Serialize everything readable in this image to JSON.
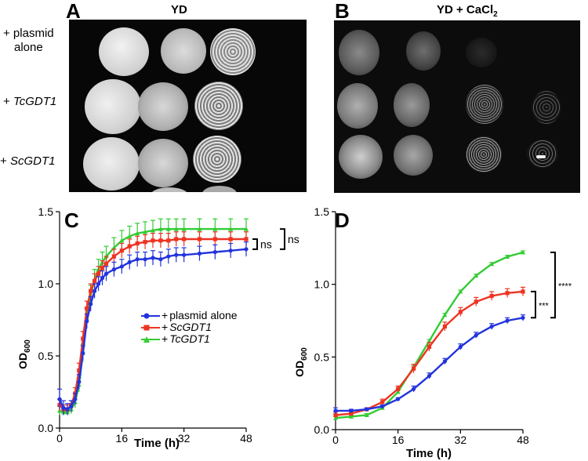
{
  "panel_a": {
    "letter": "A",
    "title": "YD",
    "rows": [
      {
        "label_line1": "+ plasmid",
        "label_line2": "alone",
        "label_italic": ""
      },
      {
        "label_line1": "+ ",
        "label_line2": "",
        "label_italic": "TcGDT1"
      },
      {
        "label_line1": "+ ",
        "label_line2": "",
        "label_italic": "ScGDT1"
      }
    ]
  },
  "panel_b": {
    "letter": "B",
    "title_main": "YD + CaCl",
    "title_sub": "2"
  },
  "panel_c": {
    "letter": "C"
  },
  "panel_d": {
    "letter": "D"
  },
  "colors": {
    "plasmid": "#2233dd",
    "scgdt1": "#ee3322",
    "tcgdt1": "#33cc33"
  },
  "chart_data": [
    {
      "type": "line",
      "panel": "C",
      "xlabel": "Time (h)",
      "ylabel_main": "OD",
      "ylabel_sub": "600",
      "xlim": [
        0,
        48
      ],
      "ylim": [
        0.0,
        1.5
      ],
      "xticks": [
        0,
        16,
        32,
        48
      ],
      "yticks": [
        0.0,
        0.5,
        1.0,
        1.5
      ],
      "xtick_labels": [
        "0",
        "16",
        "32",
        "48"
      ],
      "ytick_labels": [
        "0.0",
        "0.5",
        "1.0",
        "1.5"
      ],
      "x": [
        0,
        1,
        2,
        3,
        4,
        5,
        6,
        7,
        8,
        9,
        10,
        11,
        12,
        14,
        16,
        18,
        20,
        22,
        24,
        26,
        28,
        30,
        32,
        36,
        40,
        44,
        48
      ],
      "series": [
        {
          "name": "+ plasmid alone",
          "name_prefix": "+ ",
          "name_rest": "plasmid alone",
          "italic": false,
          "marker": "circle",
          "values": [
            0.2,
            0.14,
            0.13,
            0.15,
            0.2,
            0.32,
            0.52,
            0.74,
            0.86,
            0.95,
            1.0,
            1.04,
            1.07,
            1.1,
            1.12,
            1.15,
            1.17,
            1.17,
            1.18,
            1.17,
            1.19,
            1.2,
            1.2,
            1.21,
            1.22,
            1.23,
            1.24
          ],
          "errors": [
            0.07,
            0.05,
            0.04,
            0.04,
            0.04,
            0.05,
            0.05,
            0.05,
            0.05,
            0.05,
            0.05,
            0.05,
            0.05,
            0.05,
            0.05,
            0.05,
            0.05,
            0.05,
            0.05,
            0.05,
            0.05,
            0.05,
            0.05,
            0.05,
            0.05,
            0.05,
            0.05
          ]
        },
        {
          "name": "+ ScGDT1",
          "name_prefix": "+ ",
          "name_rest": "ScGDT1",
          "italic": true,
          "marker": "square",
          "values": [
            0.16,
            0.13,
            0.13,
            0.16,
            0.24,
            0.4,
            0.62,
            0.83,
            0.95,
            1.02,
            1.07,
            1.11,
            1.14,
            1.19,
            1.23,
            1.26,
            1.28,
            1.29,
            1.3,
            1.3,
            1.3,
            1.31,
            1.31,
            1.31,
            1.31,
            1.31,
            1.31
          ],
          "errors": [
            0.04,
            0.03,
            0.03,
            0.03,
            0.04,
            0.05,
            0.05,
            0.05,
            0.05,
            0.05,
            0.05,
            0.05,
            0.05,
            0.05,
            0.05,
            0.05,
            0.05,
            0.05,
            0.05,
            0.05,
            0.05,
            0.05,
            0.05,
            0.05,
            0.05,
            0.05,
            0.05
          ]
        },
        {
          "name": "+ TcGDT1",
          "name_prefix": "+ ",
          "name_rest": "TcGDT1",
          "italic": true,
          "marker": "triangle",
          "values": [
            0.12,
            0.11,
            0.11,
            0.13,
            0.18,
            0.3,
            0.52,
            0.76,
            0.92,
            1.03,
            1.1,
            1.15,
            1.19,
            1.25,
            1.3,
            1.33,
            1.35,
            1.36,
            1.37,
            1.38,
            1.38,
            1.38,
            1.38,
            1.38,
            1.38,
            1.38,
            1.38
          ],
          "errors": [
            0.03,
            0.02,
            0.02,
            0.03,
            0.04,
            0.05,
            0.06,
            0.07,
            0.07,
            0.07,
            0.07,
            0.07,
            0.07,
            0.07,
            0.07,
            0.07,
            0.07,
            0.07,
            0.07,
            0.07,
            0.07,
            0.07,
            0.07,
            0.07,
            0.07,
            0.07,
            0.07
          ]
        }
      ],
      "annotations": [
        {
          "text": "ns",
          "y_low": 1.24,
          "y_high": 1.31
        },
        {
          "text": "ns",
          "y_low": 1.24,
          "y_high": 1.38
        }
      ]
    },
    {
      "type": "line",
      "panel": "D",
      "xlabel": "Time (h)",
      "ylabel_main": "OD",
      "ylabel_sub": "600",
      "xlim": [
        0,
        48
      ],
      "ylim": [
        0.0,
        1.5
      ],
      "xticks": [
        0,
        16,
        32,
        48
      ],
      "yticks": [
        0.0,
        0.5,
        1.0,
        1.5
      ],
      "xtick_labels": [
        "0",
        "16",
        "32",
        "48"
      ],
      "ytick_labels": [
        "0.0",
        "0.5",
        "1.0",
        "1.5"
      ],
      "x": [
        0,
        4,
        8,
        12,
        16,
        20,
        24,
        28,
        32,
        36,
        40,
        44,
        48
      ],
      "series": [
        {
          "name": "+ plasmid alone",
          "marker": "circle",
          "values": [
            0.13,
            0.13,
            0.14,
            0.16,
            0.21,
            0.28,
            0.37,
            0.47,
            0.57,
            0.65,
            0.71,
            0.75,
            0.77
          ],
          "errors": [
            0.02,
            0.01,
            0.01,
            0.01,
            0.01,
            0.02,
            0.02,
            0.02,
            0.02,
            0.02,
            0.02,
            0.02,
            0.02
          ]
        },
        {
          "name": "+ ScGDT1",
          "marker": "square",
          "values": [
            0.1,
            0.11,
            0.14,
            0.19,
            0.28,
            0.42,
            0.57,
            0.71,
            0.81,
            0.88,
            0.92,
            0.94,
            0.95
          ],
          "errors": [
            0.02,
            0.01,
            0.01,
            0.02,
            0.02,
            0.03,
            0.03,
            0.03,
            0.03,
            0.03,
            0.03,
            0.03,
            0.03
          ]
        },
        {
          "name": "+ TcGDT1",
          "marker": "triangle",
          "values": [
            0.08,
            0.09,
            0.1,
            0.15,
            0.26,
            0.43,
            0.61,
            0.79,
            0.95,
            1.06,
            1.14,
            1.19,
            1.22
          ],
          "errors": [
            0.01,
            0.01,
            0.01,
            0.01,
            0.01,
            0.01,
            0.01,
            0.01,
            0.01,
            0.01,
            0.01,
            0.01,
            0.01
          ]
        }
      ],
      "annotations": [
        {
          "text": "***",
          "y_low": 0.77,
          "y_high": 0.95
        },
        {
          "text": "****",
          "y_low": 0.77,
          "y_high": 1.22
        }
      ]
    }
  ]
}
